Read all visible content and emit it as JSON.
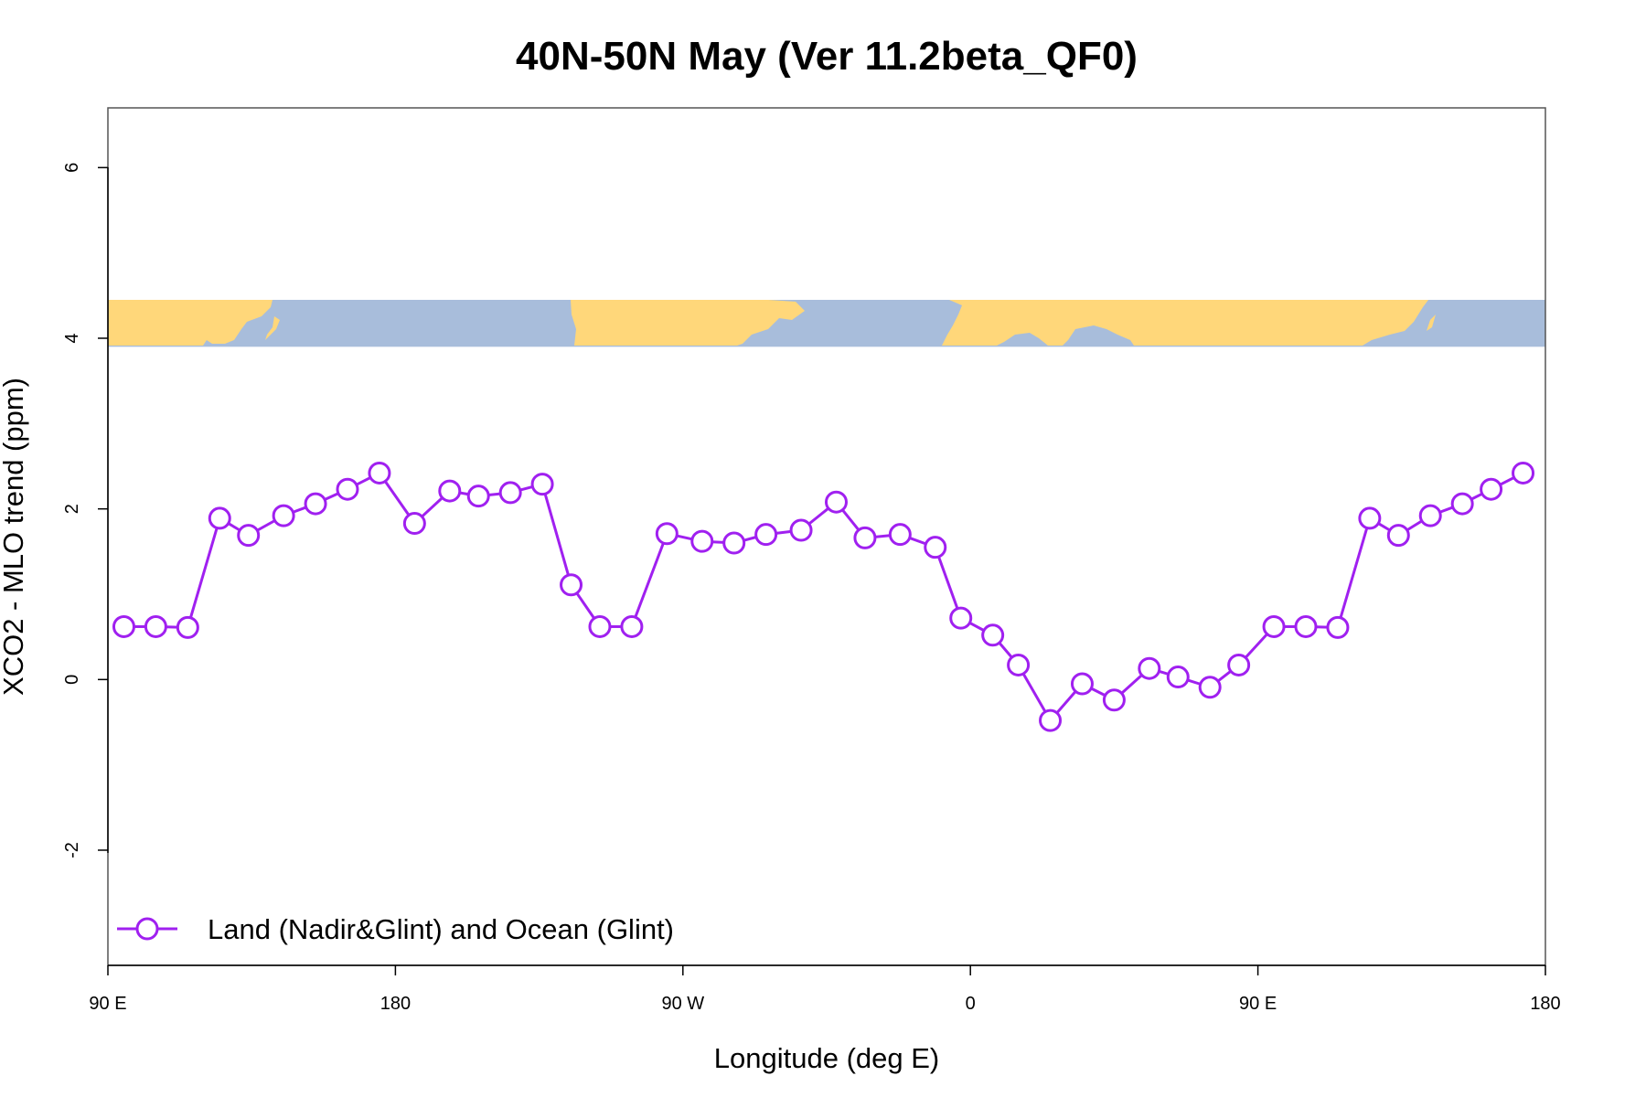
{
  "chart_data": {
    "type": "line",
    "title": "40N-50N May (Ver 11.2beta_QF0)",
    "xlabel": "Longitude (deg E)",
    "ylabel": "XCO2 - MLO trend (ppm)",
    "xlim": [
      90,
      540
    ],
    "ylim": [
      -3.35,
      6.7
    ],
    "x_ticks": [
      {
        "value": 90,
        "label": "90 E"
      },
      {
        "value": 180,
        "label": "180"
      },
      {
        "value": 270,
        "label": "90 W"
      },
      {
        "value": 360,
        "label": "0"
      },
      {
        "value": 450,
        "label": "90 E"
      },
      {
        "value": 540,
        "label": "180"
      }
    ],
    "y_ticks": [
      {
        "value": -2,
        "label": "-2"
      },
      {
        "value": 0,
        "label": "0"
      },
      {
        "value": 2,
        "label": "2"
      },
      {
        "value": 4,
        "label": "4"
      },
      {
        "value": 6,
        "label": "6"
      }
    ],
    "grid": false,
    "legend_position": "bottom-left",
    "map_strip": {
      "y_range": [
        3.9,
        4.45
      ],
      "land_color": "#ffd77a",
      "ocean_color": "#a8bddb"
    },
    "series": [
      {
        "name": "Land (Nadir&Glint) and Ocean (Glint)",
        "color": "#a020f0",
        "marker": "open-circle",
        "x": [
          95,
          105,
          115,
          125,
          134,
          145,
          155,
          165,
          175,
          186,
          197,
          206,
          216,
          226,
          235,
          244,
          254,
          265,
          276,
          286,
          296,
          307,
          318,
          327,
          338,
          349,
          357,
          367,
          375,
          385,
          395,
          405,
          416,
          425,
          435,
          444,
          455,
          465,
          475,
          485,
          494,
          504,
          514,
          523,
          533
        ],
        "y": [
          0.62,
          0.62,
          0.61,
          1.89,
          1.69,
          1.92,
          2.06,
          2.23,
          2.42,
          1.83,
          2.21,
          2.15,
          2.19,
          2.29,
          1.11,
          0.62,
          0.62,
          1.71,
          1.62,
          1.6,
          1.7,
          1.75,
          2.08,
          1.66,
          1.7,
          1.55,
          0.72,
          0.52,
          0.17,
          -0.48,
          -0.05,
          -0.24,
          0.13,
          0.03,
          -0.09,
          0.17,
          0.62,
          0.62,
          0.61,
          1.89,
          1.69,
          1.92,
          2.06,
          2.23,
          2.42
        ]
      }
    ]
  }
}
